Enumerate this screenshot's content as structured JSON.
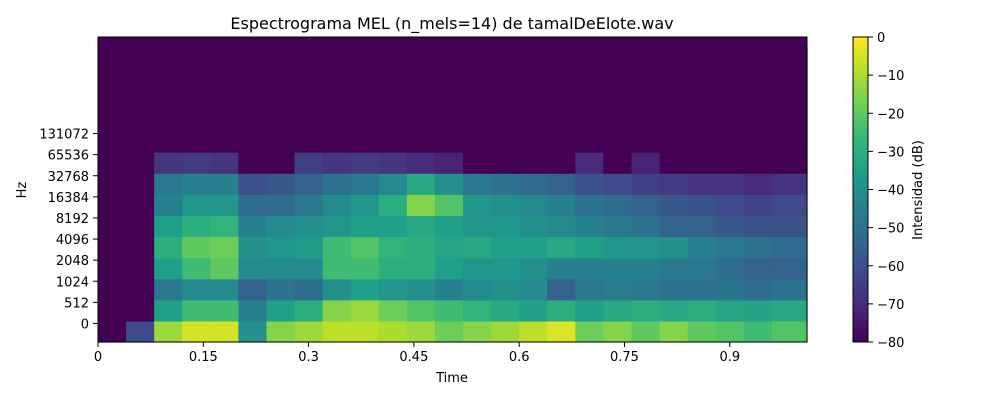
{
  "chart_data": {
    "type": "heatmap",
    "title": "Espectrograma MEL (n_mels=14) de tamalDeElote.wav",
    "xlabel": "Time",
    "ylabel": "Hz",
    "xlim": [
      0,
      1.01
    ],
    "x_ticks": [
      0,
      0.15,
      0.3,
      0.45,
      0.6,
      0.75,
      0.9
    ],
    "x_tick_labels": [
      "0",
      "0.15",
      "0.3",
      "0.45",
      "0.6",
      "0.75",
      "0.9"
    ],
    "y_tick_labels": [
      "0",
      "512",
      "1024",
      "2048",
      "4096",
      "8192",
      "16384",
      "32768",
      "65536",
      "131072"
    ],
    "colorbar": {
      "label": "Intensidad (dB)",
      "range": [
        -80,
        0
      ],
      "ticks": [
        0,
        -10,
        -20,
        -30,
        -40,
        -50,
        -60,
        -70,
        -80
      ],
      "colormap": "viridis"
    },
    "time_bins": [
      0,
      0.04,
      0.08,
      0.12,
      0.16,
      0.2,
      0.24,
      0.28,
      0.32,
      0.36,
      0.4,
      0.44,
      0.48,
      0.52,
      0.56,
      0.6,
      0.64,
      0.68,
      0.72,
      0.76,
      0.8,
      0.84,
      0.88,
      0.92,
      0.96
    ],
    "mel_bands": [
      [
        -80,
        -62,
        -12,
        -5,
        -5,
        -40,
        -15,
        -12,
        -8,
        -8,
        -10,
        -12,
        -18,
        -15,
        -12,
        -8,
        -4,
        -18,
        -15,
        -20,
        -15,
        -20,
        -22,
        -25,
        -22
      ],
      [
        -80,
        -80,
        -35,
        -25,
        -25,
        -45,
        -35,
        -30,
        -15,
        -12,
        -18,
        -22,
        -25,
        -28,
        -32,
        -35,
        -30,
        -35,
        -32,
        -30,
        -32,
        -30,
        -33,
        -34,
        -32
      ],
      [
        -80,
        -80,
        -48,
        -42,
        -42,
        -55,
        -50,
        -52,
        -40,
        -35,
        -38,
        -40,
        -45,
        -42,
        -40,
        -42,
        -55,
        -48,
        -47,
        -48,
        -50,
        -50,
        -49,
        -52,
        -50
      ],
      [
        -80,
        -80,
        -35,
        -25,
        -20,
        -42,
        -42,
        -42,
        -25,
        -25,
        -30,
        -30,
        -35,
        -38,
        -38,
        -40,
        -45,
        -45,
        -45,
        -45,
        -48,
        -48,
        -52,
        -55,
        -55
      ],
      [
        -80,
        -80,
        -30,
        -20,
        -18,
        -40,
        -38,
        -36,
        -25,
        -22,
        -28,
        -30,
        -33,
        -32,
        -35,
        -35,
        -32,
        -35,
        -38,
        -38,
        -40,
        -45,
        -48,
        -50,
        -52
      ],
      [
        -80,
        -80,
        -35,
        -30,
        -28,
        -45,
        -42,
        -40,
        -38,
        -35,
        -35,
        -32,
        -35,
        -38,
        -38,
        -40,
        -42,
        -45,
        -48,
        -50,
        -55,
        -55,
        -58,
        -60,
        -60
      ],
      [
        -80,
        -80,
        -45,
        -38,
        -38,
        -52,
        -52,
        -48,
        -42,
        -38,
        -30,
        -15,
        -22,
        -38,
        -40,
        -42,
        -45,
        -50,
        -52,
        -55,
        -58,
        -60,
        -62,
        -64,
        -62
      ],
      [
        -80,
        -80,
        -48,
        -45,
        -45,
        -60,
        -58,
        -55,
        -50,
        -48,
        -42,
        -32,
        -40,
        -48,
        -50,
        -52,
        -55,
        -60,
        -62,
        -65,
        -66,
        -68,
        -68,
        -70,
        -68
      ],
      [
        -80,
        -80,
        -68,
        -66,
        -68,
        -80,
        -80,
        -65,
        -68,
        -66,
        -68,
        -70,
        -72,
        -80,
        -80,
        -80,
        -80,
        -70,
        -80,
        -72,
        -80,
        -80,
        -80,
        -80,
        -80
      ],
      [
        -80,
        -80,
        -80,
        -80,
        -80,
        -80,
        -80,
        -80,
        -80,
        -80,
        -80,
        -80,
        -80,
        -80,
        -80,
        -80,
        -80,
        -80,
        -80,
        -80,
        -80,
        -80,
        -80,
        -80,
        -80
      ],
      [
        -80,
        -80,
        -80,
        -80,
        -80,
        -80,
        -80,
        -80,
        -80,
        -80,
        -80,
        -80,
        -80,
        -80,
        -80,
        -80,
        -80,
        -80,
        -80,
        -80,
        -80,
        -80,
        -80,
        -80,
        -80
      ],
      [
        -80,
        -80,
        -80,
        -80,
        -80,
        -80,
        -80,
        -80,
        -80,
        -80,
        -80,
        -80,
        -80,
        -80,
        -80,
        -80,
        -80,
        -80,
        -80,
        -80,
        -80,
        -80,
        -80,
        -80,
        -80
      ],
      [
        -80,
        -80,
        -80,
        -80,
        -80,
        -80,
        -80,
        -80,
        -80,
        -80,
        -80,
        -80,
        -80,
        -80,
        -80,
        -80,
        -80,
        -80,
        -80,
        -80,
        -80,
        -80,
        -80,
        -80,
        -80
      ],
      [
        -80,
        -80,
        -80,
        -80,
        -80,
        -80,
        -80,
        -80,
        -80,
        -80,
        -80,
        -80,
        -80,
        -80,
        -80,
        -80,
        -80,
        -80,
        -80,
        -80,
        -80,
        -80,
        -80,
        -80,
        -80
      ]
    ]
  }
}
